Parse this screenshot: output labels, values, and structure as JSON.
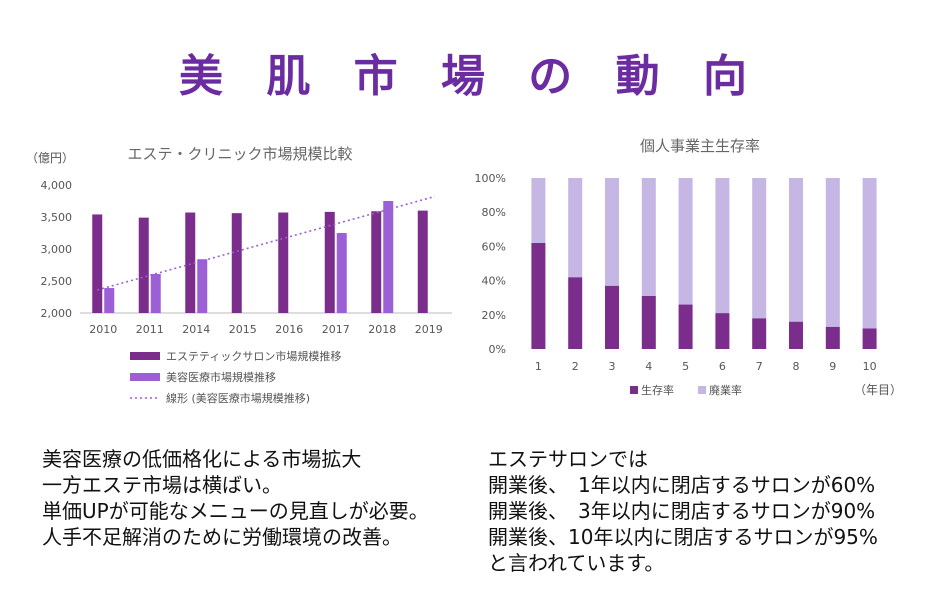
{
  "page": {
    "title": "美 肌 市 場 の 動 向"
  },
  "chart_data": [
    {
      "type": "bar",
      "title": "エステ・クリニック市場規模比較",
      "ylabel": "（億円）",
      "categories": [
        "2010",
        "2011",
        "2014",
        "2015",
        "2016",
        "2017",
        "2018",
        "2019"
      ],
      "series": [
        {
          "name": "エステティックサロン市場規模推移",
          "values": [
            3540,
            3490,
            3570,
            3560,
            3570,
            3580,
            3590,
            3600
          ],
          "color": "#7b2d8b"
        },
        {
          "name": "美容医療市場規模推移",
          "values": [
            2390,
            2610,
            2840,
            null,
            null,
            3250,
            3750,
            null
          ],
          "color": "#9b5fd6"
        }
      ],
      "trendline": {
        "name": "線形 (美容医療市場規模推移)",
        "start": 2360,
        "end": 3820,
        "color": "#9b5fd6"
      },
      "ylim": [
        2000,
        4000
      ],
      "yticks": [
        2000,
        2500,
        3000,
        3500,
        4000
      ],
      "ytick_labels": [
        "2,000",
        "2,500",
        "3,000",
        "3,500",
        "4,000"
      ]
    },
    {
      "type": "bar",
      "stacked": true,
      "title": "個人事業主生存率",
      "xlabel": "（年目）",
      "categories": [
        "1",
        "2",
        "3",
        "4",
        "5",
        "6",
        "7",
        "8",
        "9",
        "10"
      ],
      "series": [
        {
          "name": "生存率",
          "values": [
            62,
            42,
            37,
            31,
            26,
            21,
            18,
            16,
            13,
            12
          ],
          "color": "#7b2d8b"
        },
        {
          "name": "廃業率",
          "values": [
            38,
            58,
            63,
            69,
            74,
            79,
            82,
            84,
            87,
            88
          ],
          "color": "#c5b6e4"
        }
      ],
      "ylim": [
        0,
        100
      ],
      "yticks": [
        0,
        20,
        40,
        60,
        80,
        100
      ],
      "ytick_labels": [
        "0%",
        "20%",
        "40%",
        "60%",
        "80%",
        "100%"
      ]
    }
  ],
  "left_text": [
    "美容医療の低価格化による市場拡大",
    "一方エステ市場は横ばい。",
    "単価UPが可能なメニューの見直しが必要。",
    "人手不足解消のために労働環境の改善。"
  ],
  "right_text": [
    "エステサロンでは",
    "開業後、　1年以内に閉店するサロンが60%",
    "開業後、　3年以内に閉店するサロンが90%",
    "開業後、10年以内に閉店するサロンが95%",
    "と言われています。"
  ]
}
